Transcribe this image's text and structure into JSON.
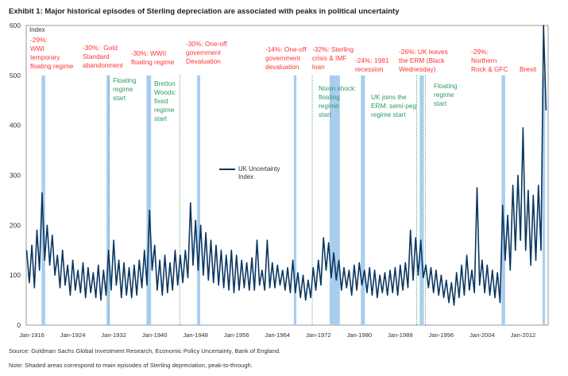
{
  "title": "Exhibit 1: Major historical episodes of Sterling depreciation are associated with peaks in political uncertainty",
  "source": "Source: Goldman Sachs Global Investment Research, Economic Policy Uncertainty, Bank of England.",
  "note": "Note: Shaded areas correspond to main episodes of Sterling depreciation, peak-to-through.",
  "colors": {
    "series": "#0b3660",
    "shade": "#a9cdee",
    "depreciation_text": "#ff3333",
    "regime_text": "#2e9a63"
  },
  "chart_data": {
    "type": "line",
    "title": "Exhibit 1: Major historical episodes of Sterling depreciation are associated with peaks in political uncertainty",
    "ylabel": "Index",
    "xlabel": "",
    "ylim": [
      0,
      600
    ],
    "yticks": [
      "0",
      "100",
      "200",
      "300",
      "400",
      "500",
      "600"
    ],
    "xticks": [
      "Jan-1916",
      "Jan-1924",
      "Jan-1932",
      "Jan-1940",
      "Jan-1948",
      "Jan-1956",
      "Jan-1964",
      "Jan-1972",
      "Jan-1980",
      "Jan-1988",
      "Jan-1996",
      "Jan-2004",
      "Jan-2012"
    ],
    "grid": false,
    "legend": {
      "position": "center",
      "entries": [
        "UK Uncertainty Index"
      ]
    },
    "series": [
      {
        "name": "UK Uncertainty Index",
        "x_start": 1915.0,
        "x_step_years": 0.5,
        "values": [
          150,
          85,
          160,
          75,
          190,
          110,
          265,
          130,
          200,
          120,
          180,
          100,
          140,
          75,
          150,
          80,
          120,
          60,
          130,
          70,
          110,
          65,
          125,
          55,
          115,
          65,
          105,
          55,
          120,
          50,
          110,
          60,
          150,
          70,
          170,
          80,
          130,
          55,
          125,
          60,
          115,
          55,
          120,
          60,
          130,
          75,
          150,
          80,
          230,
          110,
          160,
          70,
          130,
          60,
          140,
          65,
          125,
          70,
          150,
          80,
          140,
          85,
          150,
          95,
          245,
          120,
          210,
          110,
          200,
          100,
          185,
          90,
          170,
          85,
          160,
          80,
          150,
          75,
          140,
          70,
          150,
          65,
          140,
          70,
          130,
          75,
          125,
          70,
          135,
          70,
          170,
          80,
          110,
          70,
          170,
          75,
          125,
          75,
          120,
          80,
          110,
          70,
          115,
          65,
          130,
          65,
          105,
          55,
          100,
          50,
          90,
          55,
          115,
          70,
          130,
          80,
          175,
          110,
          165,
          95,
          145,
          90,
          130,
          70,
          115,
          75,
          110,
          60,
          120,
          70,
          125,
          80,
          110,
          65,
          115,
          60,
          110,
          55,
          100,
          65,
          105,
          60,
          110,
          65,
          115,
          60,
          120,
          70,
          125,
          75,
          190,
          90,
          175,
          100,
          170,
          95,
          120,
          75,
          115,
          65,
          110,
          60,
          100,
          55,
          90,
          45,
          85,
          40,
          105,
          55,
          120,
          60,
          140,
          70,
          110,
          65,
          275,
          80,
          130,
          65,
          120,
          60,
          110,
          55,
          105,
          45,
          240,
          130,
          220,
          110,
          280,
          150,
          300,
          170,
          395,
          150,
          270,
          120,
          260,
          130,
          280,
          150,
          600,
          430
        ]
      }
    ],
    "shaded_episodes": [
      {
        "label": "-29%: WWI temporary floating regime",
        "start": 1917.9,
        "end": 1918.6
      },
      {
        "label": "-30%:  Gold Standard abandonment",
        "start": 1930.6,
        "end": 1931.2
      },
      {
        "label": "-30%: WWII floating regime",
        "start": 1938.4,
        "end": 1939.3
      },
      {
        "label": "-30%: One-off government Devaluation",
        "start": 1948.3,
        "end": 1948.9
      },
      {
        "label": "-14%: One-off government devaluation",
        "start": 1967.2,
        "end": 1967.7
      },
      {
        "label": "-32%: Sterling crisis & IMF loan",
        "start": 1974.2,
        "end": 1976.2
      },
      {
        "label": "-24%: 1981 recession",
        "start": 1980.3,
        "end": 1981.1
      },
      {
        "label": "-26%: UK leaves the ERM (Black Wednesday)",
        "start": 1991.8,
        "end": 1992.6
      },
      {
        "label": "-29%: Northern Rock & GFC",
        "start": 2007.8,
        "end": 2008.5
      },
      {
        "label": "Brexit",
        "start": 2015.8,
        "end": 2016.3
      }
    ],
    "regime_lines": [
      {
        "label": "Floating regime start",
        "x": 1931.1
      },
      {
        "label": "Bretton Woods: fixed regime start",
        "x": 1944.9
      },
      {
        "label": "Nixon shock: floating regime start",
        "x": 1970.8
      },
      {
        "label": "UK joins the ERM: semi-peg regime start",
        "x": 1991.2
      },
      {
        "label": "Floating regime start",
        "x": 1992.9
      }
    ]
  },
  "annotations": {
    "dep": [
      "-29%:\nWWI\ntemporary\nfloating regime",
      "-30%:  Gold\nStandard\nabandonment",
      "-30%: WWII\nfloating regime",
      "-30%: One-off\ngovernment\nDevaluation",
      "-14%: One-off\ngovernment\ndevaluation",
      "-32%: Sterling\ncrisis & IMF\nloan",
      "-24%: 1981\nrecession",
      "-26%: UK leaves\nthe ERM (Black\nWednesday)",
      "-29%:\nNorthern\nRock & GFC",
      "Brexit"
    ],
    "reg": [
      "Floating\nregime\nstart",
      "Bretton\nWoods:\nfixed\nregime\nstart",
      "Nixon shock:\nfloating\nregime\nstart",
      "UK joins the\nERM: semi-peg\nregime start",
      "Floating\nregime\nstart"
    ]
  }
}
